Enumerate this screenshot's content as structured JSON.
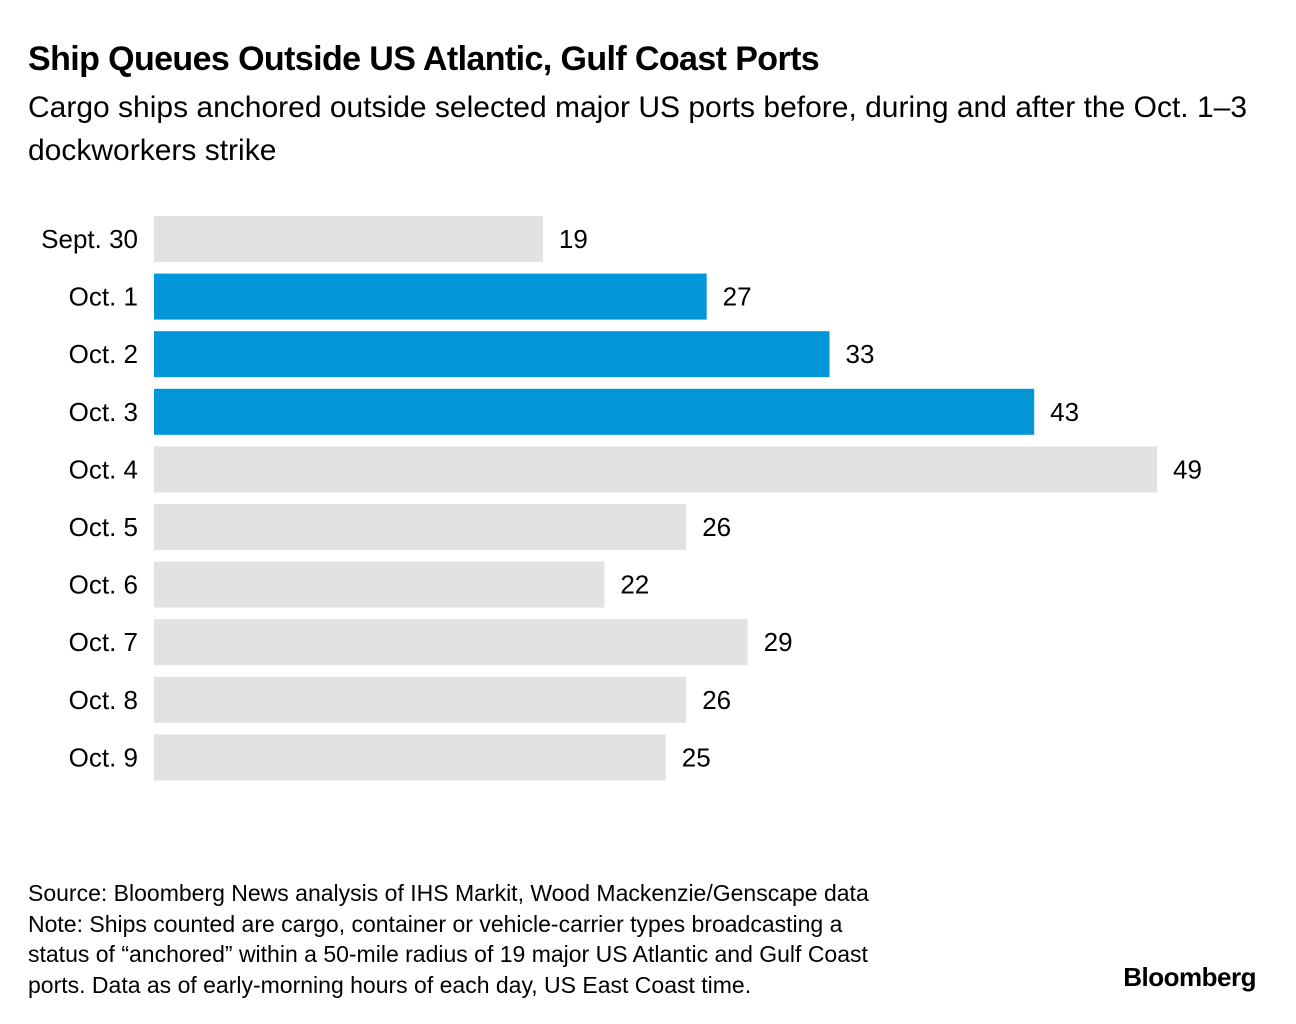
{
  "header": {
    "title": "Ship Queues Outside US Atlantic, Gulf Coast Ports",
    "subtitle": "Cargo ships anchored outside selected major US ports before, during and after the Oct. 1–3 dockworkers strike"
  },
  "chart_data": {
    "type": "bar",
    "orientation": "horizontal",
    "categories": [
      "Sept. 30",
      "Oct. 1",
      "Oct. 2",
      "Oct. 3",
      "Oct. 4",
      "Oct. 5",
      "Oct. 6",
      "Oct. 7",
      "Oct. 8",
      "Oct. 9"
    ],
    "values": [
      19,
      27,
      33,
      43,
      49,
      26,
      22,
      29,
      26,
      25
    ],
    "highlighted": [
      false,
      true,
      true,
      true,
      false,
      false,
      false,
      false,
      false,
      false
    ],
    "data_labels": true,
    "grid": false,
    "xlim": [
      0,
      49
    ],
    "colors": {
      "highlight": "#0096d8",
      "default": "#e2e2e2"
    }
  },
  "footer": {
    "lines": [
      "Source: Bloomberg News analysis of IHS Markit, Wood Mackenzie/Genscape data",
      "Note: Ships counted are cargo, container or vehicle-carrier types broadcasting a",
      "status of “anchored” within a 50-mile radius of 19 major US Atlantic and Gulf Coast",
      "ports. Data as of early-morning hours of each day, US East Coast time."
    ],
    "brand": "Bloomberg"
  }
}
